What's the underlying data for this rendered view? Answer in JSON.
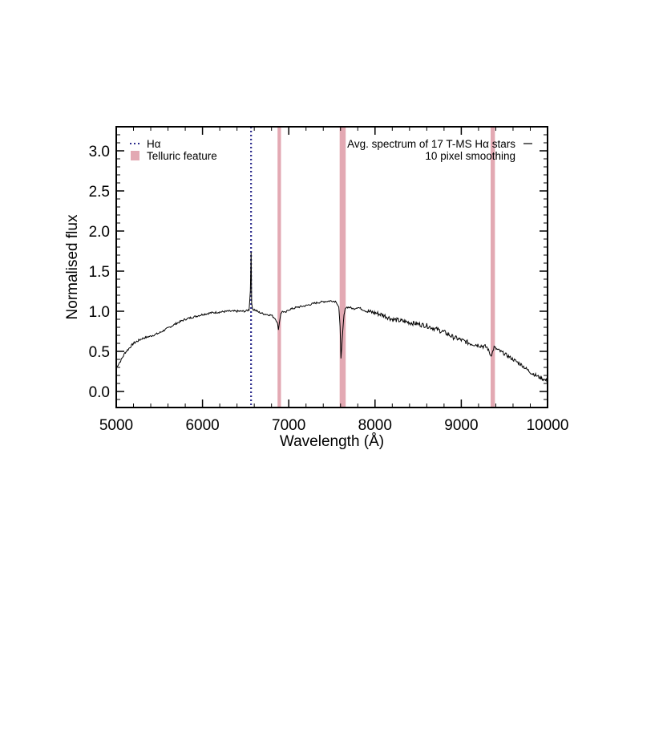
{
  "chart_data": {
    "type": "line",
    "xlabel": "Wavelength (Å)",
    "ylabel": "Normalised flux",
    "xlim": [
      5000,
      10000
    ],
    "ylim": [
      -0.2,
      3.3
    ],
    "x_ticks": [
      5000,
      6000,
      7000,
      8000,
      9000,
      10000
    ],
    "y_ticks": [
      0.0,
      0.5,
      1.0,
      1.5,
      2.0,
      2.5,
      3.0
    ],
    "x_tick_labels": [
      "5000",
      "6000",
      "7000",
      "8000",
      "9000",
      "10000"
    ],
    "y_tick_labels": [
      "0.0",
      "0.5",
      "1.0",
      "1.5",
      "2.0",
      "2.5",
      "3.0"
    ],
    "grid": false,
    "series": [
      {
        "name": "Avg. spectrum of 17 T-MS Hα stars",
        "name_line2": "10 pixel smoothing",
        "color": "#000000",
        "x": [
          5000,
          5050,
          5100,
          5200,
          5300,
          5400,
          5500,
          5600,
          5700,
          5800,
          5900,
          6000,
          6100,
          6200,
          6300,
          6400,
          6500,
          6540,
          6555,
          6560,
          6563,
          6566,
          6570,
          6585,
          6600,
          6650,
          6700,
          6750,
          6800,
          6850,
          6870,
          6880,
          6890,
          6900,
          6910,
          6930,
          6960,
          7000,
          7100,
          7200,
          7300,
          7400,
          7500,
          7550,
          7580,
          7595,
          7605,
          7620,
          7640,
          7660,
          7700,
          7750,
          7800,
          7900,
          8000,
          8100,
          8200,
          8300,
          8400,
          8500,
          8600,
          8700,
          8800,
          8900,
          9000,
          9100,
          9200,
          9300,
          9340,
          9360,
          9380,
          9420,
          9500,
          9600,
          9700,
          9800,
          9900,
          10000
        ],
        "y": [
          0.3,
          0.38,
          0.48,
          0.6,
          0.66,
          0.69,
          0.73,
          0.79,
          0.85,
          0.9,
          0.93,
          0.96,
          0.98,
          0.99,
          1.0,
          1.0,
          1.0,
          1.02,
          1.25,
          1.55,
          1.75,
          1.5,
          1.1,
          1.02,
          1.02,
          0.99,
          0.97,
          0.96,
          0.95,
          0.9,
          0.84,
          0.78,
          0.85,
          0.92,
          0.98,
          1.0,
          0.98,
          1.02,
          1.05,
          1.07,
          1.1,
          1.12,
          1.13,
          1.12,
          1.05,
          0.8,
          0.42,
          0.65,
          0.95,
          1.05,
          1.05,
          1.03,
          1.05,
          1.0,
          0.98,
          0.95,
          0.9,
          0.88,
          0.86,
          0.84,
          0.82,
          0.78,
          0.74,
          0.68,
          0.64,
          0.6,
          0.58,
          0.55,
          0.45,
          0.48,
          0.55,
          0.52,
          0.47,
          0.4,
          0.33,
          0.24,
          0.18,
          0.13
        ]
      }
    ],
    "reference_lines": [
      {
        "label": "Hα",
        "x": 6563,
        "color": "#2a2a8c",
        "style": "dotted"
      }
    ],
    "bands": {
      "label": "Telluric feature",
      "color": "#e3a9b3",
      "ranges": [
        [
          6870,
          6910
        ],
        [
          7590,
          7660
        ],
        [
          9340,
          9390
        ]
      ]
    },
    "legend_placement": "top-left"
  }
}
